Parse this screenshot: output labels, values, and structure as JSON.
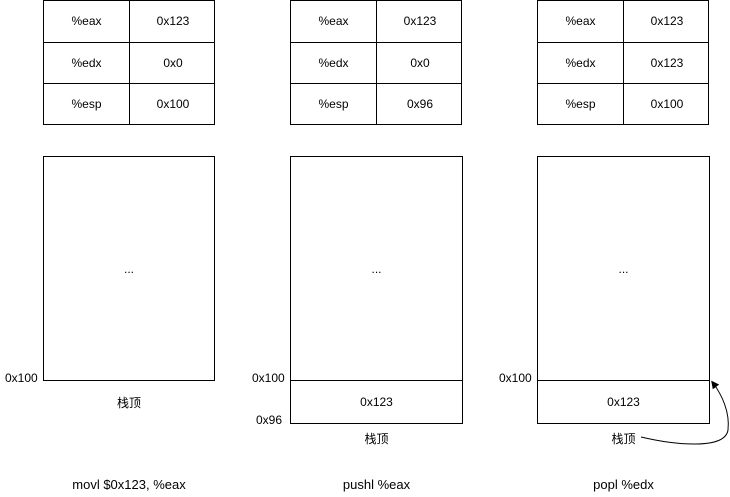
{
  "panels": [
    {
      "registers": [
        {
          "name": "%eax",
          "value": "0x123"
        },
        {
          "name": "%edx",
          "value": "0x0"
        },
        {
          "name": "%esp",
          "value": "0x100"
        }
      ],
      "stack_dots": "...",
      "addr_top": "0x100",
      "stack_label": "栈顶",
      "caption": "movl  $0x123, %eax"
    },
    {
      "registers": [
        {
          "name": "%eax",
          "value": "0x123"
        },
        {
          "name": "%edx",
          "value": "0x0"
        },
        {
          "name": "%esp",
          "value": "0x96"
        }
      ],
      "stack_dots": "...",
      "addr_top": "0x100",
      "addr_bottom": "0x96",
      "pushed_value": "0x123",
      "stack_label": "栈顶",
      "caption": "pushl %eax"
    },
    {
      "registers": [
        {
          "name": "%eax",
          "value": "0x123"
        },
        {
          "name": "%edx",
          "value": "0x123"
        },
        {
          "name": "%esp",
          "value": "0x100"
        }
      ],
      "stack_dots": "...",
      "addr_top": "0x100",
      "popped_value": "0x123",
      "stack_label": "栈顶",
      "caption": "popl %edx"
    }
  ]
}
